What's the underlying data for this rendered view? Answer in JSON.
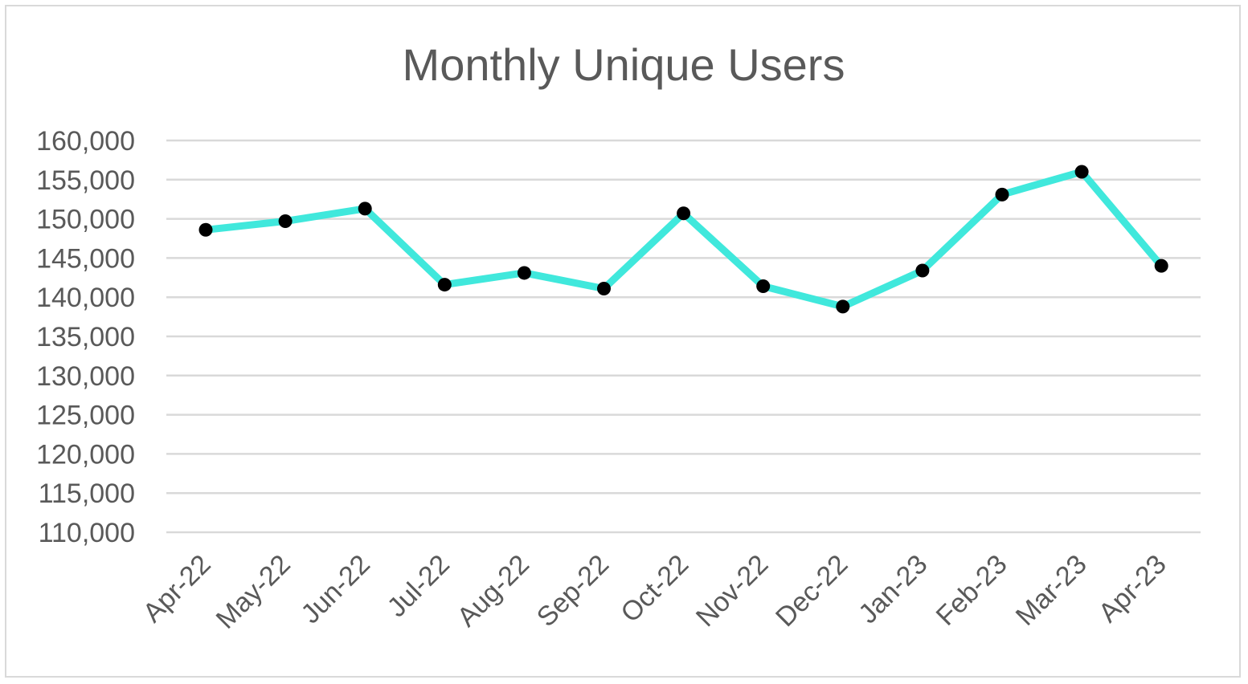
{
  "chart_data": {
    "type": "line",
    "title": "Monthly Unique Users",
    "xlabel": "",
    "ylabel": "",
    "categories": [
      "Apr-22",
      "May-22",
      "Jun-22",
      "Jul-22",
      "Aug-22",
      "Sep-22",
      "Oct-22",
      "Nov-22",
      "Dec-22",
      "Jan-23",
      "Feb-23",
      "Mar-23",
      "Apr-23"
    ],
    "series": [
      {
        "values": [
          148600,
          149700,
          151300,
          141600,
          143100,
          141100,
          150700,
          141400,
          138800,
          143400,
          153100,
          156000,
          144000
        ]
      }
    ],
    "ylim": [
      110000,
      160000
    ],
    "yticks": [
      110000,
      115000,
      120000,
      125000,
      130000,
      135000,
      140000,
      145000,
      150000,
      155000,
      160000
    ],
    "ytick_labels": [
      "110,000",
      "115,000",
      "120,000",
      "125,000",
      "130,000",
      "135,000",
      "140,000",
      "145,000",
      "150,000",
      "155,000",
      "160,000"
    ],
    "grid": true,
    "legend": "none",
    "colors": {
      "line": "#40e8dc",
      "marker": "#000000",
      "grid": "#d9d9d9",
      "text": "#595959",
      "border": "#d9d9d9"
    }
  }
}
